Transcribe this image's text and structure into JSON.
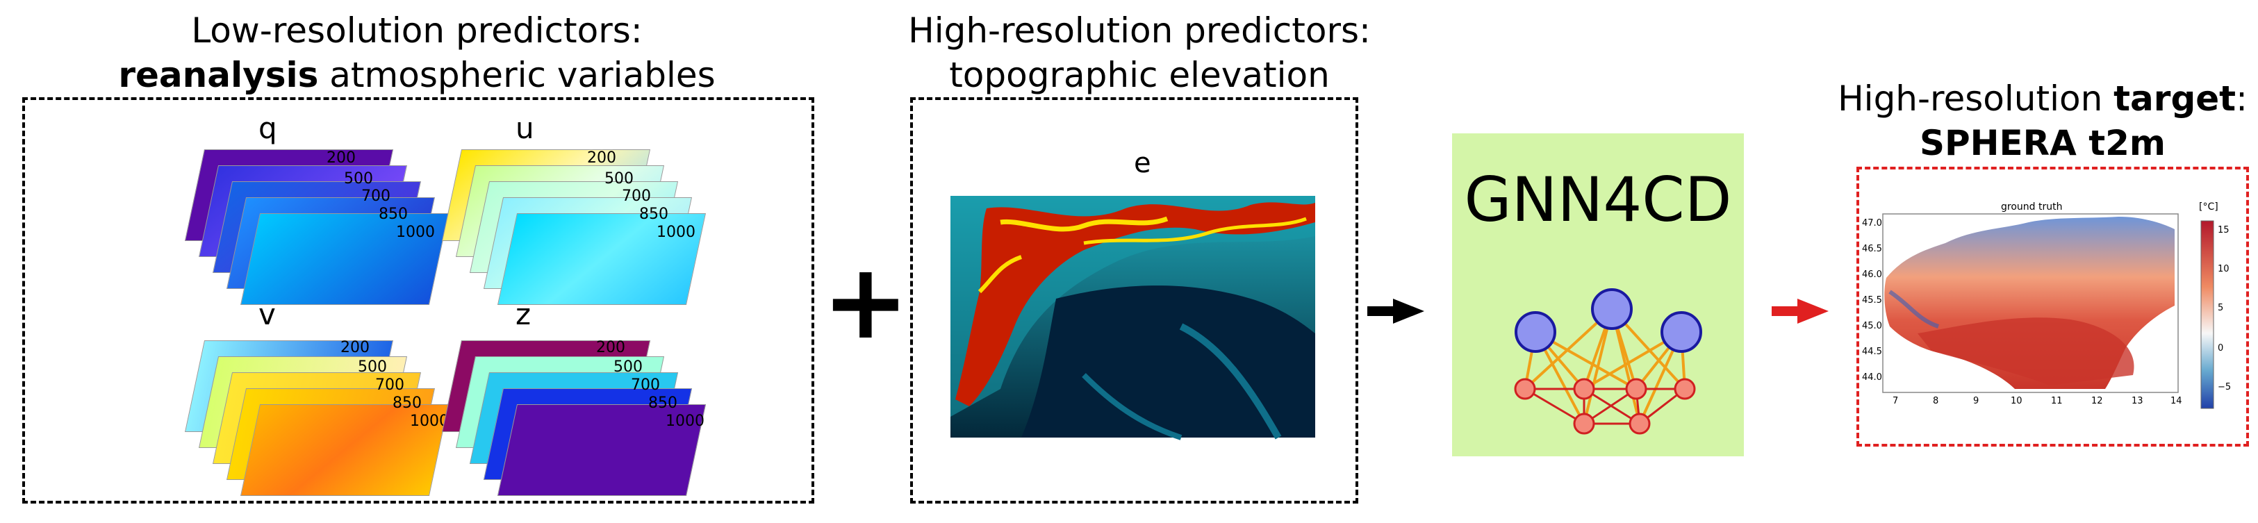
{
  "headings": {
    "low_res_line1": "Low-resolution predictors:",
    "low_res_bold": "reanalysis",
    "low_res_rest": " atmospheric variables",
    "high_res_line1": "High-resolution predictors:",
    "high_res_line2": "topographic elevation",
    "target_line1_pre": "High-resolution ",
    "target_line1_bold": "target",
    "target_line1_post": ":",
    "target_line2": "SPHERA t2m"
  },
  "variables": [
    {
      "name": "q",
      "levels": [
        "200",
        "500",
        "700",
        "850",
        "1000"
      ]
    },
    {
      "name": "u",
      "levels": [
        "200",
        "500",
        "700",
        "850",
        "1000"
      ]
    },
    {
      "name": "v",
      "levels": [
        "200",
        "500",
        "700",
        "850",
        "1000"
      ]
    },
    {
      "name": "z",
      "levels": [
        "200",
        "500",
        "700",
        "850",
        "1000"
      ]
    }
  ],
  "elevation_label": "e",
  "plus_sign": "+",
  "model_name": "GNN4CD",
  "map": {
    "title": "ground truth",
    "unit": "[°C]",
    "lat_ticks": [
      "47.0",
      "46.5",
      "46.0",
      "45.5",
      "45.0",
      "44.5",
      "44.0"
    ],
    "lon_ticks": [
      "7",
      "8",
      "9",
      "10",
      "11",
      "12",
      "13",
      "14"
    ],
    "colorbar_ticks": [
      "15",
      "10",
      "5",
      "0",
      "−5"
    ]
  },
  "colors": {
    "gnn_bg": "#d4f5a8",
    "node_fill": "#8f94f0",
    "node_stroke": "#1a1aa0",
    "edge": "#f0a018",
    "small_node": "#f48a7a",
    "arrow_red": "#e02020"
  }
}
